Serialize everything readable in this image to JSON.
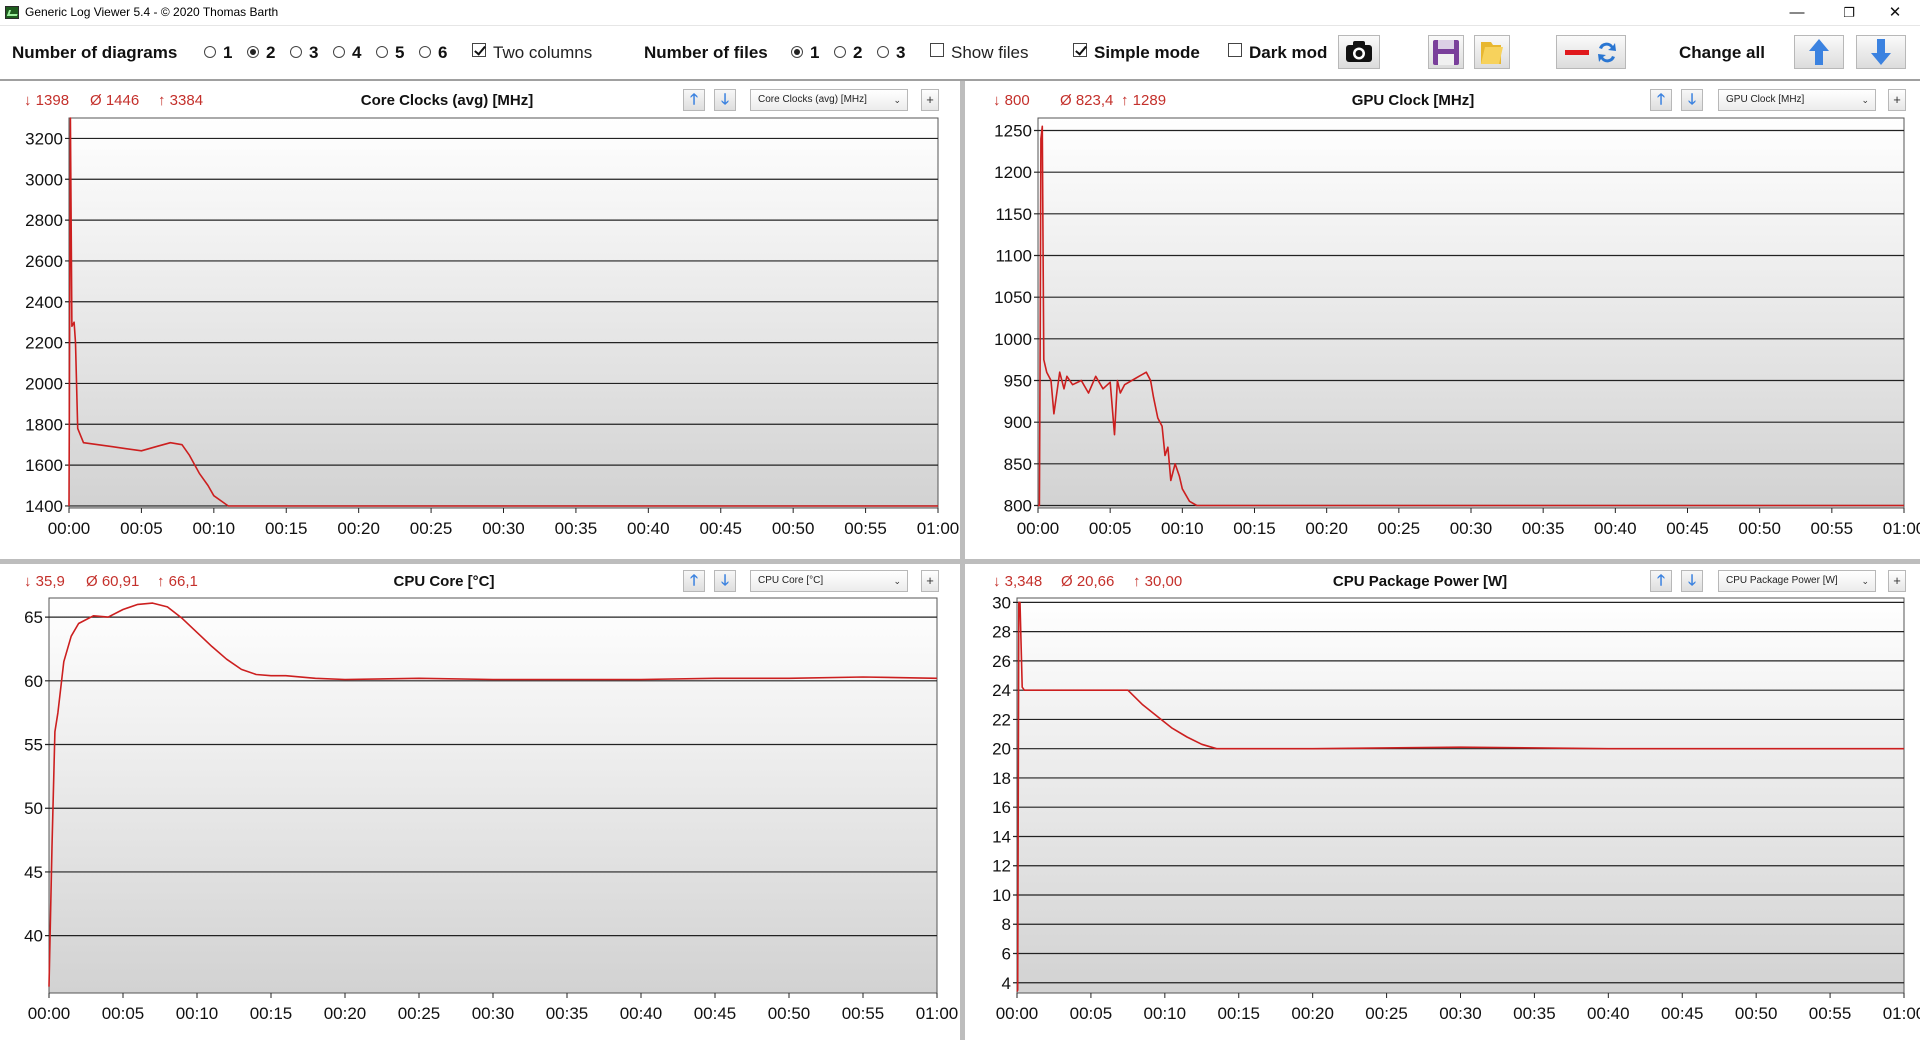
{
  "window": {
    "title": "Generic Log Viewer 5.4 - © 2020 Thomas Barth",
    "minimize": "—",
    "maximize": "❐",
    "close": "✕"
  },
  "toolbar": {
    "num_diagrams_label": "Number of diagrams",
    "diagram_options": [
      "1",
      "2",
      "3",
      "4",
      "5",
      "6"
    ],
    "diagram_selected": "2",
    "two_columns_label": "Two columns",
    "two_columns_checked": true,
    "num_files_label": "Number of files",
    "file_options": [
      "1",
      "2",
      "3"
    ],
    "file_selected": "1",
    "show_files_label": "Show files",
    "show_files_checked": false,
    "simple_mode_label": "Simple mode",
    "simple_mode_checked": true,
    "dark_mode_label": "Dark mod",
    "dark_mode_checked": false,
    "change_all_label": "Change all",
    "icons": [
      "camera-icon",
      "save-icon",
      "folder-icon",
      "color-swap-icon",
      "arrow-up-icon",
      "arrow-down-icon"
    ]
  },
  "panels": [
    {
      "stats": {
        "min": "↓ 1398",
        "avg": "Ø 1446",
        "max": "↑ 3384"
      },
      "title": "Core Clocks (avg) [MHz]",
      "selector": "Core Clocks (avg) [MHz]",
      "up": "🡑",
      "down": "🡓",
      "plus": "+"
    },
    {
      "stats": {
        "min": "↓ 800",
        "avg": "Ø 823,4",
        "max": "↑ 1289"
      },
      "title": "GPU Clock [MHz]",
      "selector": "GPU Clock [MHz]",
      "up": "🡑",
      "down": "🡓",
      "plus": "+"
    },
    {
      "stats": {
        "min": "↓ 35,9",
        "avg": "Ø 60,91",
        "max": "↑ 66,1"
      },
      "title": "CPU Core [°C]",
      "selector": "CPU Core [°C]",
      "up": "🡑",
      "down": "🡓",
      "plus": "+"
    },
    {
      "stats": {
        "min": "↓ 3,348",
        "avg": "Ø 20,66",
        "max": "↑ 30,00"
      },
      "title": "CPU Package Power [W]",
      "selector": "CPU Package Power [W]",
      "up": "🡑",
      "down": "🡓",
      "plus": "+"
    }
  ],
  "colors": {
    "line": "#cc1f1f",
    "stat": "#c4302b",
    "accent": "#3b82e0"
  },
  "chart_data": [
    {
      "type": "line",
      "title": "Core Clocks (avg) [MHz]",
      "xlabel": "",
      "ylabel": "",
      "ylim": [
        1390,
        3300
      ],
      "xlim": [
        0,
        60
      ],
      "yticks": [
        1400,
        1600,
        1800,
        2000,
        2200,
        2400,
        2600,
        2800,
        3000,
        3200
      ],
      "xticks": [
        "00:00",
        "00:05",
        "00:10",
        "00:15",
        "00:20",
        "00:25",
        "00:30",
        "00:35",
        "00:40",
        "00:45",
        "00:50",
        "00:55",
        "01:00"
      ],
      "grid": true,
      "series": [
        {
          "x": [
            0,
            0.1,
            0.2,
            0.35,
            0.45,
            0.6,
            1,
            2,
            3,
            4,
            5,
            6,
            7,
            7.8,
            8.3,
            9,
            9.6,
            10,
            10.6,
            11,
            20,
            30,
            40,
            50,
            60
          ],
          "y": [
            1400,
            3300,
            2280,
            2300,
            2200,
            1780,
            1710,
            1700,
            1690,
            1680,
            1670,
            1690,
            1710,
            1700,
            1650,
            1560,
            1500,
            1450,
            1420,
            1400,
            1400,
            1400,
            1400,
            1400,
            1400
          ]
        }
      ]
    },
    {
      "type": "line",
      "title": "GPU Clock [MHz]",
      "xlabel": "",
      "ylabel": "",
      "ylim": [
        797,
        1265
      ],
      "xlim": [
        0,
        60
      ],
      "yticks": [
        800,
        850,
        900,
        950,
        1000,
        1050,
        1100,
        1150,
        1200,
        1250
      ],
      "xticks": [
        "00:00",
        "00:05",
        "00:10",
        "00:15",
        "00:20",
        "00:25",
        "00:30",
        "00:35",
        "00:40",
        "00:45",
        "00:50",
        "00:55",
        "01:00"
      ],
      "grid": true,
      "series": [
        {
          "x": [
            0,
            0.1,
            0.15,
            0.2,
            0.3,
            0.35,
            0.4,
            0.6,
            0.9,
            1.1,
            1.5,
            1.8,
            2,
            2.4,
            3,
            3.5,
            4,
            4.5,
            5,
            5.3,
            5.5,
            5.7,
            6,
            6.5,
            7,
            7.5,
            7.8,
            8,
            8.3,
            8.6,
            8.8,
            9,
            9.2,
            9.5,
            9.8,
            10,
            10.5,
            11,
            20,
            30,
            40,
            50,
            60
          ],
          "y": [
            800,
            800,
            1000,
            1240,
            1255,
            1100,
            975,
            960,
            950,
            910,
            960,
            940,
            955,
            945,
            950,
            935,
            955,
            940,
            948,
            885,
            950,
            935,
            945,
            950,
            955,
            960,
            950,
            930,
            905,
            895,
            860,
            870,
            830,
            850,
            835,
            820,
            805,
            800,
            800,
            800,
            800,
            800,
            800
          ]
        }
      ]
    },
    {
      "type": "line",
      "title": "CPU Core [°C]",
      "xlabel": "",
      "ylabel": "",
      "ylim": [
        35.5,
        66.5
      ],
      "xlim": [
        0,
        60
      ],
      "yticks": [
        40,
        45,
        50,
        55,
        60,
        65
      ],
      "xticks": [
        "00:00",
        "00:05",
        "00:10",
        "00:15",
        "00:20",
        "00:25",
        "00:30",
        "00:35",
        "00:40",
        "00:45",
        "00:50",
        "00:55",
        "01:00"
      ],
      "grid": true,
      "series": [
        {
          "x": [
            0,
            0.2,
            0.4,
            0.6,
            1,
            1.5,
            2,
            3,
            4,
            5,
            6,
            7,
            8,
            9,
            10,
            11,
            12,
            13,
            14,
            15,
            16,
            18,
            20,
            25,
            30,
            35,
            40,
            45,
            50,
            55,
            60
          ],
          "y": [
            36,
            47,
            56,
            57.5,
            61.5,
            63.5,
            64.5,
            65.1,
            65.0,
            65.6,
            66.0,
            66.1,
            65.8,
            64.9,
            63.8,
            62.7,
            61.7,
            60.9,
            60.5,
            60.4,
            60.4,
            60.2,
            60.1,
            60.2,
            60.1,
            60.1,
            60.1,
            60.2,
            60.2,
            60.3,
            60.2
          ]
        }
      ]
    },
    {
      "type": "line",
      "title": "CPU Package Power [W]",
      "xlabel": "",
      "ylabel": "",
      "ylim": [
        3.3,
        30.3
      ],
      "xlim": [
        0,
        60
      ],
      "yticks": [
        4,
        6,
        8,
        10,
        12,
        14,
        16,
        18,
        20,
        22,
        24,
        26,
        28,
        30
      ],
      "xticks": [
        "00:00",
        "00:05",
        "00:10",
        "00:15",
        "00:20",
        "00:25",
        "00:30",
        "00:35",
        "00:40",
        "00:45",
        "00:50",
        "00:55",
        "01:00"
      ],
      "grid": true,
      "series": [
        {
          "x": [
            0,
            0.05,
            0.12,
            0.2,
            0.35,
            0.5,
            7.5,
            8.5,
            9.5,
            10.5,
            11.5,
            12.5,
            13.5,
            20,
            30,
            40,
            50,
            60
          ],
          "y": [
            3.4,
            3.5,
            30,
            30,
            24.2,
            24.0,
            24.0,
            23.0,
            22.2,
            21.4,
            20.8,
            20.3,
            20.0,
            20.0,
            20.1,
            20.0,
            20.0,
            20.0
          ]
        }
      ]
    }
  ]
}
